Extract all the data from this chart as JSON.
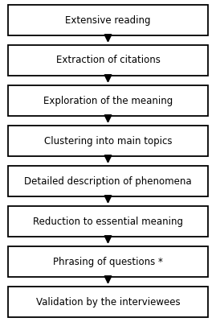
{
  "steps": [
    "Extensive reading",
    "Extraction of citations",
    "Exploration of the meaning",
    "Clustering into main topics",
    "Detailed description of phenomena",
    "Reduction to essential meaning",
    "Phrasing of questions *",
    "Validation by the interviewees"
  ],
  "box_facecolor": "#ffffff",
  "box_edgecolor": "#000000",
  "arrow_color": "#000000",
  "background_color": "#ffffff",
  "text_color": "#000000",
  "font_size": 8.5,
  "fig_width": 2.69,
  "fig_height": 4.0,
  "dpi": 100
}
